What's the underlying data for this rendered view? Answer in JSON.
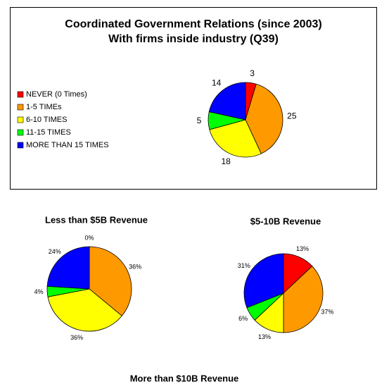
{
  "chart_data": [
    {
      "type": "pie",
      "title": "Coordinated Government Relations (since 2003)",
      "subtitle": "With firms inside industry (Q39)",
      "categories": [
        "NEVER (0 Times)",
        "1-5 TIMEs",
        "6-10 TIMES",
        "11-15 TIMES",
        "MORE THAN 15 TIMES"
      ],
      "values": [
        3,
        25,
        18,
        5,
        14
      ],
      "colors": [
        "#ff0000",
        "#ff9900",
        "#ffff00",
        "#00ff00",
        "#0000ff"
      ],
      "legend": "left"
    },
    {
      "type": "pie",
      "title": "Less than $5B Revenue",
      "values": [
        0,
        36,
        36,
        4,
        24
      ],
      "value_labels": [
        "0%",
        "36%",
        "36%",
        "4%",
        "24%"
      ],
      "colors": [
        "#ff0000",
        "#ff9900",
        "#ffff00",
        "#00ff00",
        "#0000ff"
      ]
    },
    {
      "type": "pie",
      "title": "$5-10B Revenue",
      "values": [
        13,
        37,
        13,
        6,
        31
      ],
      "value_labels": [
        "13%",
        "37%",
        "13%",
        "6%",
        "31%"
      ],
      "colors": [
        "#ff0000",
        "#ff9900",
        "#ffff00",
        "#00ff00",
        "#0000ff"
      ]
    },
    {
      "type": "pie",
      "title": "More than $10B Revenue"
    }
  ]
}
